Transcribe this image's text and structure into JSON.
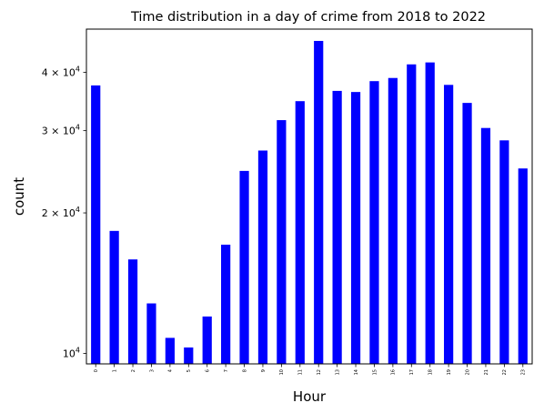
{
  "chart_data": {
    "type": "bar",
    "title": "Time distribution in a day of crime from 2018 to 2022",
    "xlabel": "Hour",
    "ylabel": "count",
    "y_scale": "log",
    "ylim": [
      9500,
      49500
    ],
    "y_ticks": [
      {
        "value": 10000,
        "base": "10",
        "exp": "4",
        "prefix": ""
      },
      {
        "value": 20000,
        "base": "10",
        "exp": "4",
        "prefix": "2 × "
      },
      {
        "value": 30000,
        "base": "10",
        "exp": "4",
        "prefix": "3 × "
      },
      {
        "value": 40000,
        "base": "10",
        "exp": "4",
        "prefix": "4 × "
      }
    ],
    "categories": [
      "0",
      "1",
      "2",
      "3",
      "4",
      "5",
      "6",
      "7",
      "8",
      "9",
      "10",
      "11",
      "12",
      "13",
      "14",
      "15",
      "16",
      "17",
      "18",
      "19",
      "20",
      "21",
      "22",
      "23"
    ],
    "values": [
      37500,
      18300,
      15900,
      12800,
      10800,
      10300,
      12000,
      17100,
      24600,
      27200,
      31600,
      34700,
      46700,
      36500,
      36300,
      38300,
      38900,
      41600,
      42000,
      37600,
      34400,
      30400,
      28600,
      24900
    ],
    "bar_color": "#0000ff",
    "grid": false,
    "legend": "none"
  }
}
